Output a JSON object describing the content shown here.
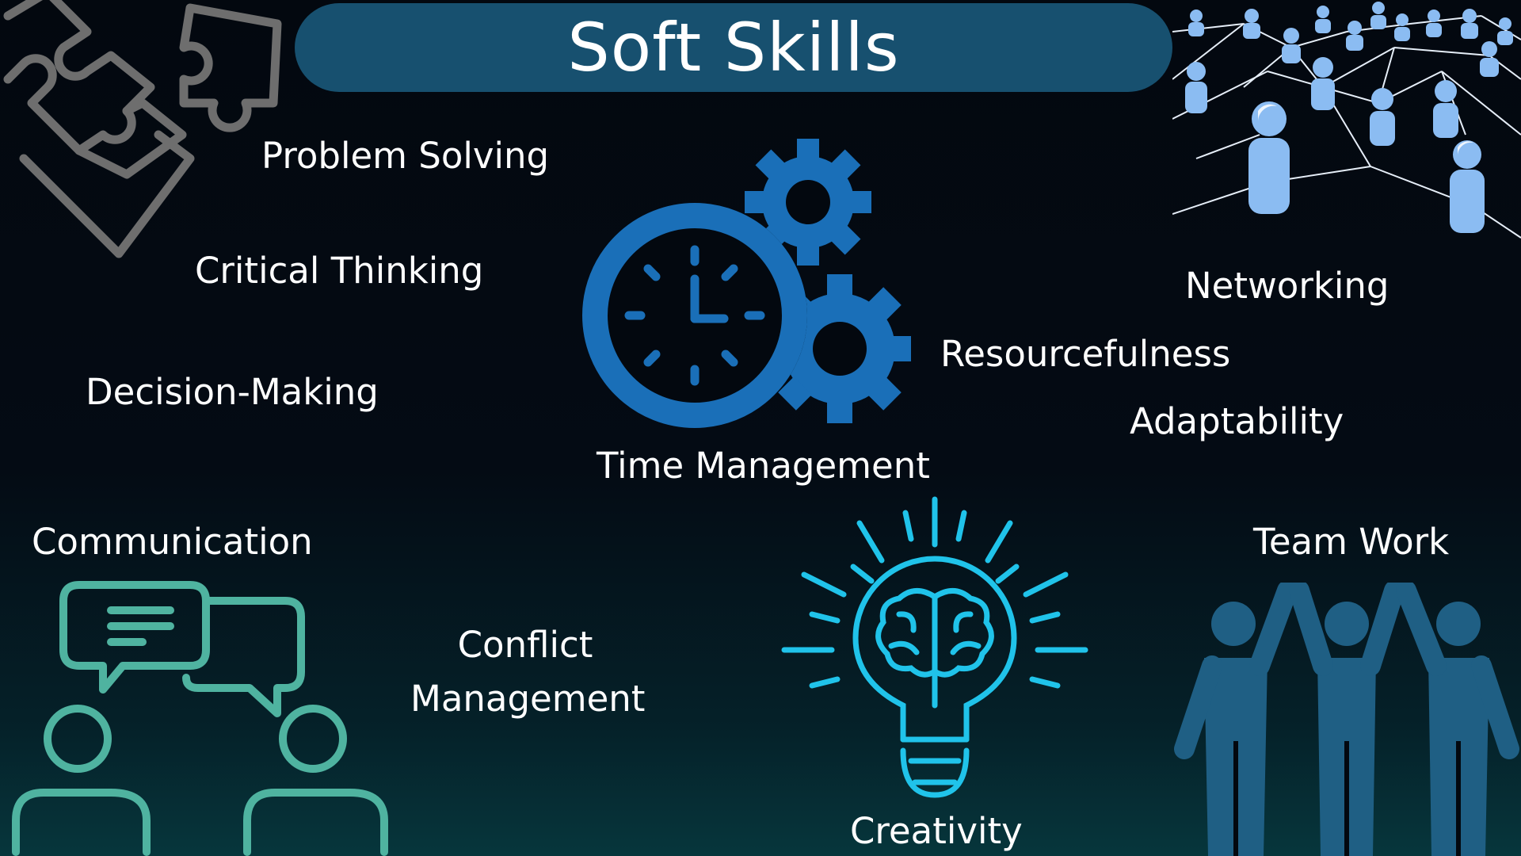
{
  "title": "Soft Skills",
  "skills": {
    "problem_solving": "Problem Solving",
    "critical_thinking": "Critical Thinking",
    "decision_making": "Decision-Making",
    "time_management": "Time Management",
    "networking": "Networking",
    "resourcefulness": "Resourcefulness",
    "adaptability": "Adaptability",
    "communication": "Communication",
    "conflict_management_line1": "Conflict",
    "conflict_management_line2": "Management",
    "creativity": "Creativity",
    "team_work": "Team Work"
  },
  "icons": {
    "puzzle": "puzzle-icon",
    "clock_gears": "clock-gears-icon",
    "network": "people-network-icon",
    "chat": "chat-people-icon",
    "lightbulb": "lightbulb-brain-icon",
    "team": "team-high-five-icon"
  },
  "colors": {
    "title_bar": "#17506f",
    "clock_blue": "#1a6fb8",
    "network_blue": "#8bbcf2",
    "chat_teal": "#4fb3a0",
    "bulb_cyan": "#20c3ea",
    "team_blue": "#1f5f84",
    "puzzle_gray": "#6e6e6e"
  }
}
